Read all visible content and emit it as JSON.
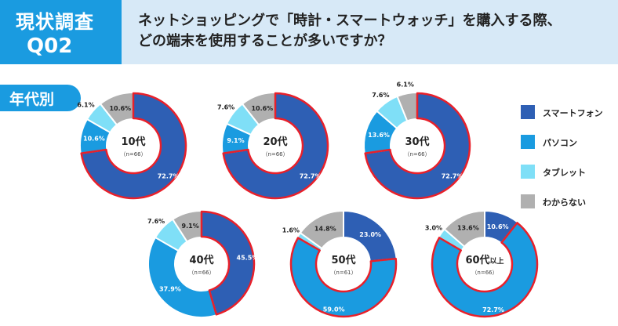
{
  "header": {
    "badge_line1": "現状調査",
    "badge_line2": "Q02",
    "question": "ネットショッピングで「時計・スマートウォッチ」を購入する際、\nどの端末を使用することが多いですか？"
  },
  "segment_tag": "年代別",
  "colors": {
    "smartphone": "#2e5fb4",
    "pc": "#1a9be0",
    "tablet": "#7fdff7",
    "unknown": "#b0b0b0",
    "highlight": "#e8202a"
  },
  "chart_data": {
    "type": "pie",
    "variant": "donut",
    "series_names": [
      "スマートフォン",
      "パソコン",
      "タブレット",
      "わからない"
    ],
    "charts": [
      {
        "label": "10代",
        "sample": "（n=66）",
        "values": [
          72.7,
          10.6,
          6.1,
          10.6
        ],
        "highlight": 0
      },
      {
        "label": "20代",
        "sample": "（n=66）",
        "values": [
          72.7,
          9.1,
          7.6,
          10.6
        ],
        "highlight": 0
      },
      {
        "label": "30代",
        "sample": "（n=66）",
        "values": [
          72.7,
          13.6,
          7.6,
          6.1
        ],
        "highlight": 0
      },
      {
        "label": "40代",
        "sample": "（n=66）",
        "values": [
          45.5,
          37.9,
          7.6,
          9.1
        ],
        "highlight": 0
      },
      {
        "label": "50代",
        "sample": "（n=61）",
        "values": [
          23.0,
          59.0,
          1.6,
          14.8
        ],
        "highlight": 1
      },
      {
        "label": "60代",
        "label_suffix": "以上",
        "sample": "（n=66）",
        "values": [
          10.6,
          72.7,
          3.0,
          13.6
        ],
        "highlight": 1
      }
    ]
  },
  "legend": {
    "placement": "right",
    "items": [
      {
        "label": "スマートフォン",
        "color": "#2e5fb4"
      },
      {
        "label": "パソコン",
        "color": "#1a9be0"
      },
      {
        "label": "タブレット",
        "color": "#7fdff7"
      },
      {
        "label": "わからない",
        "color": "#b0b0b0"
      }
    ]
  }
}
